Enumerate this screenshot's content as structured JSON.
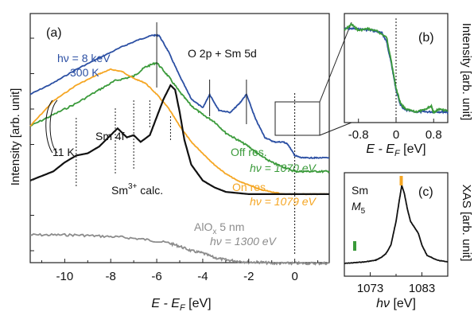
{
  "colors": {
    "blue": "#2b4fa3",
    "green": "#3a9a3a",
    "orange": "#f5a623",
    "black": "#111111",
    "gray": "#8c8c8c"
  },
  "chart_data": [
    {
      "panel": "(a)",
      "type": "line",
      "xlabel_main": "E - E",
      "xlabel_sub": "F",
      "xlabel_unit": " [eV]",
      "ylabel": "Intensity [arb. unit]",
      "xlim": [
        -11.5,
        1.5
      ],
      "xticks": [
        "-10",
        "-8",
        "-6",
        "-4",
        "-2",
        "0"
      ],
      "x_inverted": false,
      "annotations": {
        "hv_blue_a": "hν = 8 keV",
        "temp_blue": "300 K",
        "valence": "O 2p + Sm 5d",
        "sm4f": "Sm 4f",
        "temp_low": "11 K",
        "calc": "Sm",
        "calc_sup": "3+",
        "calc_tail": " calc.",
        "off_res": "Off res.",
        "hv_off": "hν = 1070 eV",
        "on_res": "On res.",
        "hv_on": "hν = 1079 eV",
        "alox": "AlO",
        "alox_sub": "x",
        "alox_tail": " 5 nm",
        "hv_alox": "hν = 1300 eV"
      },
      "series": [
        {
          "name": "hν = 8 keV, 300 K",
          "color": "blue",
          "x": [
            -11.5,
            -10.5,
            -9.5,
            -8.5,
            -7.5,
            -6.8,
            -6.2,
            -5.9,
            -5.5,
            -5.0,
            -4.5,
            -4.0,
            -3.7,
            -3.3,
            -2.8,
            -2.4,
            -2.1,
            -1.7,
            -1.3,
            -0.9,
            -0.5,
            -0.3,
            0.0,
            0.3,
            0.7,
            1.0,
            1.5
          ],
          "y": [
            0.74,
            0.79,
            0.85,
            0.9,
            0.95,
            0.98,
            1.0,
            1.0,
            0.93,
            0.82,
            0.72,
            0.68,
            0.74,
            0.67,
            0.66,
            0.7,
            0.74,
            0.63,
            0.55,
            0.53,
            0.53,
            0.52,
            0.47,
            0.46,
            0.46,
            0.46,
            0.46
          ]
        },
        {
          "name": "Off res., hν = 1070 eV",
          "color": "green",
          "x": [
            -11.5,
            -10.5,
            -9.5,
            -8.5,
            -7.8,
            -7.0,
            -6.5,
            -6.0,
            -5.5,
            -5.0,
            -4.5,
            -4.0,
            -3.5,
            -3.0,
            -2.5,
            -2.0,
            -1.5,
            -1.0,
            -0.5,
            0.0,
            0.5,
            1.0,
            1.5
          ],
          "y": [
            0.58,
            0.63,
            0.68,
            0.74,
            0.78,
            0.8,
            0.84,
            0.86,
            0.8,
            0.73,
            0.67,
            0.63,
            0.6,
            0.55,
            0.52,
            0.49,
            0.45,
            0.42,
            0.4,
            0.38,
            0.38,
            0.38,
            0.38
          ]
        },
        {
          "name": "On res., hν = 1079 eV",
          "color": "orange",
          "x": [
            -11.5,
            -10.5,
            -9.5,
            -8.5,
            -8.0,
            -7.5,
            -7.0,
            -6.5,
            -6.0,
            -5.5,
            -5.0,
            -4.5,
            -4.0,
            -3.5,
            -3.0,
            -2.5,
            -2.0,
            -1.5,
            -1.0,
            -0.5,
            0.0,
            0.5,
            1.0,
            1.5
          ],
          "y": [
            0.52,
            0.63,
            0.7,
            0.75,
            0.77,
            0.76,
            0.73,
            0.71,
            0.66,
            0.6,
            0.52,
            0.45,
            0.4,
            0.35,
            0.31,
            0.28,
            0.26,
            0.24,
            0.23,
            0.22,
            0.22,
            0.22,
            0.22,
            0.22
          ]
        },
        {
          "name": "Sm3+ calc.",
          "color": "black",
          "x": [
            -11.5,
            -10.5,
            -10.0,
            -9.5,
            -9.0,
            -8.5,
            -8.0,
            -7.7,
            -7.3,
            -7.0,
            -6.7,
            -6.3,
            -6.0,
            -5.7,
            -5.4,
            -5.2,
            -5.0,
            -4.8,
            -4.5,
            -4.0,
            -3.5,
            -3.0,
            -2.0,
            -1.0,
            0.0,
            1.0,
            1.5
          ],
          "y": [
            0.2,
            0.24,
            0.28,
            0.31,
            0.32,
            0.35,
            0.4,
            0.43,
            0.39,
            0.4,
            0.37,
            0.4,
            0.48,
            0.56,
            0.62,
            0.6,
            0.5,
            0.38,
            0.27,
            0.2,
            0.17,
            0.15,
            0.14,
            0.14,
            0.14,
            0.14,
            0.14
          ]
        },
        {
          "name": "AlOx 5 nm, hν = 1300 eV",
          "color": "gray",
          "x": [
            -11.5,
            -10.5,
            -9.5,
            -8.5,
            -7.5,
            -6.5,
            -5.5,
            -5.0,
            -4.5,
            -4.0,
            -3.5,
            -3.0,
            -2.5,
            -2.0,
            -1.5,
            -1.0,
            -0.5,
            0.0,
            0.5,
            1.0,
            1.5
          ],
          "y": [
            0.08,
            0.08,
            0.08,
            0.075,
            0.07,
            0.06,
            0.045,
            0.03,
            0.01,
            0.0,
            -0.02,
            -0.03,
            -0.035,
            -0.04,
            -0.04,
            -0.045,
            -0.045,
            -0.045,
            -0.045,
            -0.045,
            -0.045
          ]
        }
      ],
      "peak_markers_x": [
        -6.0,
        -3.7,
        -2.1,
        -9.5,
        -7.8,
        -7.0,
        -6.3,
        -5.4
      ]
    },
    {
      "panel": "(b)",
      "type": "line",
      "xlabel_main": "E - E",
      "xlabel_sub": "F",
      "xlabel_unit": " [eV]",
      "ylabel": "Intensity [arb. unit]",
      "xlim": [
        -1.1,
        1.1
      ],
      "xticks": [
        "-0.8",
        "0",
        "0.8"
      ],
      "series": [
        {
          "name": "blue",
          "color": "blue",
          "x": [
            -1.1,
            -0.9,
            -0.7,
            -0.5,
            -0.3,
            -0.2,
            -0.1,
            0.0,
            0.1,
            0.2,
            0.4,
            0.6,
            0.8,
            1.0,
            1.1
          ],
          "y": [
            1.0,
            1.0,
            0.99,
            0.98,
            0.95,
            0.85,
            0.6,
            0.3,
            0.12,
            0.07,
            0.05,
            0.05,
            0.05,
            0.05,
            0.05
          ]
        },
        {
          "name": "green",
          "color": "green",
          "x": [
            -1.1,
            -0.95,
            -0.8,
            -0.6,
            -0.4,
            -0.2,
            -0.1,
            0.0,
            0.1,
            0.2,
            0.4,
            0.6,
            0.75,
            0.8,
            0.9,
            1.1
          ],
          "y": [
            0.98,
            1.05,
            0.98,
            1.0,
            0.97,
            0.9,
            0.62,
            0.32,
            0.14,
            0.08,
            0.05,
            0.07,
            0.12,
            0.04,
            0.08,
            0.06
          ]
        }
      ]
    },
    {
      "panel": "(c)",
      "type": "line",
      "xlabel": "hν [eV]",
      "ylabel": "XAS [arb. unit]",
      "label_sm": "Sm",
      "label_m": "M",
      "label_m_sub": "5",
      "xlim": [
        1068,
        1088
      ],
      "xticks": [
        "1073",
        "1083"
      ],
      "markers": [
        {
          "x": 1070,
          "color": "green"
        },
        {
          "x": 1079,
          "color": "orange"
        }
      ],
      "series": [
        {
          "name": "Sm M5",
          "color": "black",
          "x": [
            1068,
            1070,
            1072,
            1074,
            1075,
            1076,
            1077,
            1078,
            1078.6,
            1079.1,
            1079.6,
            1080.2,
            1080.8,
            1081.5,
            1082.3,
            1083,
            1084,
            1086,
            1088
          ],
          "y": [
            0.02,
            0.03,
            0.04,
            0.06,
            0.09,
            0.14,
            0.25,
            0.55,
            0.8,
            1.0,
            0.9,
            0.7,
            0.55,
            0.48,
            0.4,
            0.25,
            0.12,
            0.06,
            0.04
          ]
        }
      ]
    }
  ]
}
